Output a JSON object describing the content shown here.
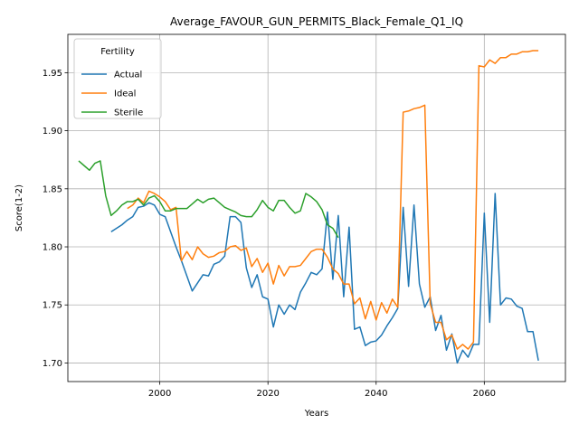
{
  "chart_data": {
    "type": "line",
    "title": "Average_FAVOUR_GUN_PERMITS_Black_Female_Q1_IQ",
    "xlabel": "Years",
    "ylabel": "Score(1-2)",
    "xlim": [
      1983,
      2075
    ],
    "ylim": [
      1.684,
      1.983
    ],
    "xticks": [
      2000,
      2020,
      2040,
      2060
    ],
    "yticks": [
      1.7,
      1.75,
      1.8,
      1.85,
      1.9,
      1.95
    ],
    "ytick_labels": [
      "1.70",
      "1.75",
      "1.80",
      "1.85",
      "1.90",
      "1.95"
    ],
    "grid": true,
    "legend": {
      "title": "Fertility",
      "position": "upper-left"
    },
    "series": [
      {
        "name": "Actual",
        "color": "#1f77b4",
        "x": [
          1991,
          1992,
          1993,
          1994,
          1995,
          1996,
          1997,
          1998,
          1999,
          2000,
          2001,
          2002,
          2003,
          2004,
          2005,
          2006,
          2007,
          2008,
          2009,
          2010,
          2011,
          2012,
          2013,
          2014,
          2015,
          2016,
          2017,
          2018,
          2019,
          2020,
          2021,
          2022,
          2023,
          2024,
          2025,
          2026,
          2027,
          2028,
          2029,
          2030,
          2031,
          2032,
          2033,
          2034,
          2035,
          2036,
          2037,
          2038,
          2039,
          2040,
          2041,
          2042,
          2043,
          2044,
          2045,
          2046,
          2047,
          2048,
          2049,
          2050,
          2051,
          2052,
          2053,
          2054,
          2055,
          2056,
          2057,
          2058,
          2059,
          2060,
          2061,
          2062,
          2063,
          2064,
          2065,
          2066,
          2067,
          2068,
          2069,
          2070
        ],
        "y": [
          1.813,
          1.816,
          1.819,
          1.823,
          1.826,
          1.834,
          1.835,
          1.838,
          1.836,
          1.828,
          1.826,
          1.813,
          1.8,
          1.788,
          1.775,
          1.762,
          1.769,
          1.776,
          1.775,
          1.785,
          1.787,
          1.792,
          1.826,
          1.826,
          1.821,
          1.782,
          1.765,
          1.776,
          1.757,
          1.755,
          1.731,
          1.75,
          1.742,
          1.75,
          1.746,
          1.761,
          1.769,
          1.778,
          1.776,
          1.781,
          1.83,
          1.772,
          1.827,
          1.757,
          1.817,
          1.729,
          1.731,
          1.715,
          1.718,
          1.719,
          1.724,
          1.732,
          1.739,
          1.747,
          1.834,
          1.766,
          1.836,
          1.768,
          1.748,
          1.757,
          1.728,
          1.741,
          1.711,
          1.725,
          1.7,
          1.711,
          1.705,
          1.716,
          1.716,
          1.829,
          1.735,
          1.846,
          1.75,
          1.756,
          1.755,
          1.749,
          1.747,
          1.727,
          1.727,
          1.702
        ]
      },
      {
        "name": "Ideal",
        "color": "#ff7f0e",
        "x": [
          1994,
          1995,
          1996,
          1997,
          1998,
          1999,
          2000,
          2001,
          2002,
          2003,
          2004,
          2005,
          2006,
          2007,
          2008,
          2009,
          2010,
          2011,
          2012,
          2013,
          2014,
          2015,
          2016,
          2017,
          2018,
          2019,
          2020,
          2021,
          2022,
          2023,
          2024,
          2025,
          2026,
          2027,
          2028,
          2029,
          2030,
          2031,
          2032,
          2033,
          2034,
          2035,
          2036,
          2037,
          2038,
          2039,
          2040,
          2041,
          2042,
          2043,
          2044,
          2045,
          2046,
          2047,
          2048,
          2049,
          2050,
          2051,
          2052,
          2053,
          2054,
          2055,
          2056,
          2057,
          2058,
          2059,
          2060,
          2061,
          2062,
          2063,
          2064,
          2065,
          2066,
          2067,
          2068,
          2069,
          2070
        ],
        "y": [
          1.833,
          1.836,
          1.842,
          1.838,
          1.848,
          1.846,
          1.843,
          1.839,
          1.832,
          1.834,
          1.788,
          1.796,
          1.789,
          1.8,
          1.794,
          1.791,
          1.792,
          1.795,
          1.796,
          1.8,
          1.801,
          1.797,
          1.799,
          1.783,
          1.79,
          1.778,
          1.786,
          1.768,
          1.784,
          1.775,
          1.783,
          1.783,
          1.784,
          1.79,
          1.796,
          1.798,
          1.798,
          1.791,
          1.781,
          1.777,
          1.768,
          1.768,
          1.751,
          1.756,
          1.738,
          1.753,
          1.737,
          1.752,
          1.743,
          1.755,
          1.748,
          1.916,
          1.917,
          1.919,
          1.92,
          1.922,
          1.751,
          1.735,
          1.735,
          1.72,
          1.724,
          1.712,
          1.716,
          1.712,
          1.718,
          1.956,
          1.955,
          1.961,
          1.958,
          1.963,
          1.963,
          1.966,
          1.966,
          1.968,
          1.968,
          1.969,
          1.969
        ]
      },
      {
        "name": "Sterile",
        "color": "#2ca02c",
        "x": [
          1985,
          1986,
          1987,
          1988,
          1989,
          1990,
          1991,
          1992,
          1993,
          1994,
          1995,
          1996,
          1997,
          1998,
          1999,
          2000,
          2001,
          2002,
          2003,
          2004,
          2005,
          2006,
          2007,
          2008,
          2009,
          2010,
          2011,
          2012,
          2013,
          2014,
          2015,
          2016,
          2017,
          2018,
          2019,
          2020,
          2021,
          2022,
          2023,
          2024,
          2025,
          2026,
          2027,
          2028,
          2029,
          2030,
          2031,
          2032,
          2033
        ],
        "y": [
          1.874,
          1.87,
          1.866,
          1.872,
          1.874,
          1.844,
          1.827,
          1.831,
          1.836,
          1.839,
          1.839,
          1.841,
          1.836,
          1.842,
          1.844,
          1.839,
          1.831,
          1.831,
          1.833,
          1.833,
          1.833,
          1.837,
          1.841,
          1.838,
          1.841,
          1.842,
          1.838,
          1.834,
          1.832,
          1.83,
          1.827,
          1.826,
          1.826,
          1.832,
          1.84,
          1.834,
          1.831,
          1.84,
          1.84,
          1.834,
          1.829,
          1.831,
          1.846,
          1.843,
          1.839,
          1.832,
          1.819,
          1.816,
          1.808
        ]
      }
    ]
  }
}
